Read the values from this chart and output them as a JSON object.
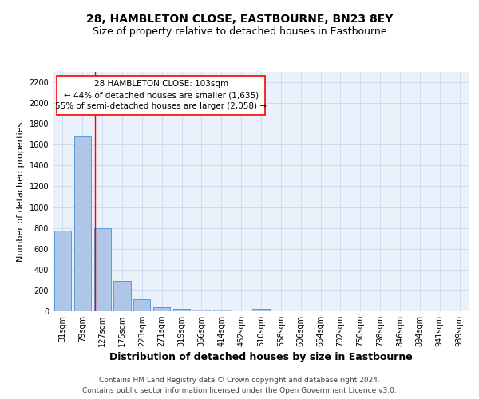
{
  "title": "28, HAMBLETON CLOSE, EASTBOURNE, BN23 8EY",
  "subtitle": "Size of property relative to detached houses in Eastbourne",
  "xlabel": "Distribution of detached houses by size in Eastbourne",
  "ylabel": "Number of detached properties",
  "footer_line1": "Contains HM Land Registry data © Crown copyright and database right 2024.",
  "footer_line2": "Contains public sector information licensed under the Open Government Licence v3.0.",
  "categories": [
    "31sqm",
    "79sqm",
    "127sqm",
    "175sqm",
    "223sqm",
    "271sqm",
    "319sqm",
    "366sqm",
    "414sqm",
    "462sqm",
    "510sqm",
    "558sqm",
    "606sqm",
    "654sqm",
    "702sqm",
    "750sqm",
    "798sqm",
    "846sqm",
    "894sqm",
    "941sqm",
    "989sqm"
  ],
  "values": [
    775,
    1680,
    800,
    295,
    115,
    40,
    22,
    17,
    16,
    0,
    20,
    0,
    0,
    0,
    0,
    0,
    0,
    0,
    0,
    0,
    0
  ],
  "bar_color": "#aec6e8",
  "bar_edge_color": "#5b9bd5",
  "red_line_x": 1.62,
  "annotation_text_line1": "28 HAMBLETON CLOSE: 103sqm",
  "annotation_text_line2": "← 44% of detached houses are smaller (1,635)",
  "annotation_text_line3": "55% of semi-detached houses are larger (2,058) →",
  "ylim": [
    0,
    2300
  ],
  "yticks": [
    0,
    200,
    400,
    600,
    800,
    1000,
    1200,
    1400,
    1600,
    1800,
    2000,
    2200
  ],
  "bg_color": "#eaf1fb",
  "grid_color": "#c8d8ee",
  "title_fontsize": 10,
  "subtitle_fontsize": 9,
  "xlabel_fontsize": 9,
  "ylabel_fontsize": 8,
  "tick_fontsize": 7,
  "annotation_fontsize": 7.5,
  "footer_fontsize": 6.5
}
